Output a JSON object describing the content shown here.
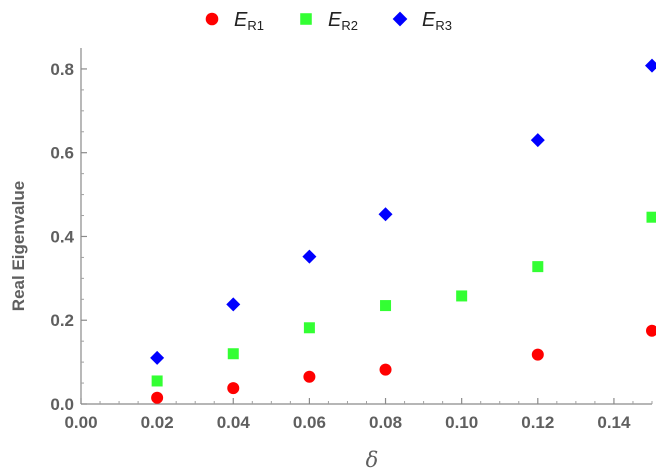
{
  "chart_data": {
    "type": "scatter",
    "title": "",
    "xlabel": "δ",
    "ylabel": "Real Eigenvalue",
    "xlim": [
      0.0,
      0.15
    ],
    "ylim": [
      0.0,
      0.85
    ],
    "xticks": [
      "0.00",
      "0.02",
      "0.04",
      "0.06",
      "0.08",
      "0.10",
      "0.12",
      "0.14"
    ],
    "yticks": [
      "0.0",
      "0.2",
      "0.4",
      "0.6",
      "0.8"
    ],
    "grid": false,
    "legend_position": "top",
    "series": [
      {
        "name": "E",
        "subscript": "R1",
        "color": "#ff0000",
        "marker": "circle",
        "x": [
          0.02,
          0.04,
          0.06,
          0.08,
          0.12,
          0.15
        ],
        "y": [
          0.015,
          0.038,
          0.065,
          0.082,
          0.118,
          0.175
        ]
      },
      {
        "name": "E",
        "subscript": "R2",
        "color": "#33ff33",
        "marker": "square",
        "x": [
          0.02,
          0.04,
          0.06,
          0.08,
          0.1,
          0.12,
          0.15
        ],
        "y": [
          0.055,
          0.12,
          0.182,
          0.235,
          0.258,
          0.328,
          0.446
        ]
      },
      {
        "name": "E",
        "subscript": "R3",
        "color": "#0000ff",
        "marker": "diamond",
        "x": [
          0.02,
          0.04,
          0.06,
          0.08,
          0.12,
          0.15
        ],
        "y": [
          0.11,
          0.238,
          0.352,
          0.453,
          0.63,
          0.808
        ]
      }
    ]
  }
}
